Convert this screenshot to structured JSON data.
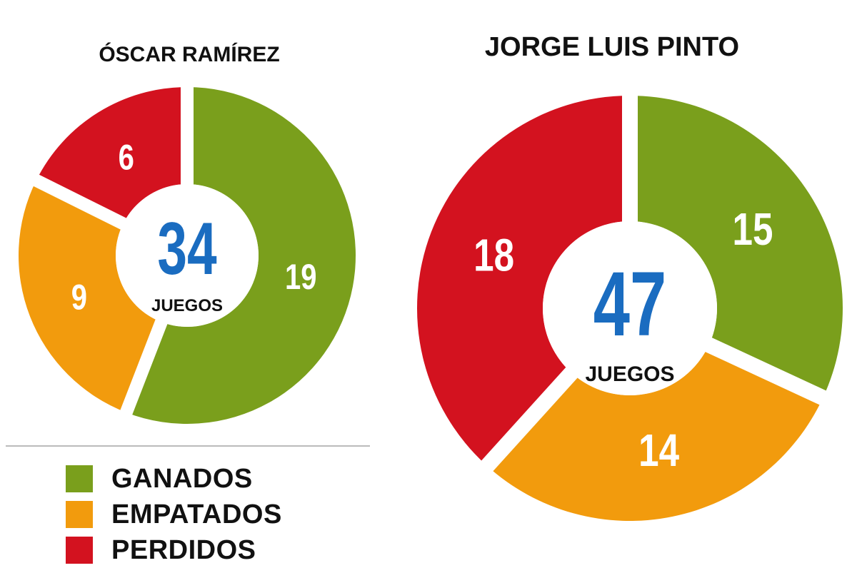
{
  "chart_data": [
    {
      "type": "pie",
      "title": "ÓSCAR RAMÍREZ",
      "categories": [
        "GANADOS",
        "EMPATADOS",
        "PERDIDOS"
      ],
      "values": [
        19,
        9,
        6
      ],
      "total": "34",
      "total_label": "JUEGOS"
    },
    {
      "type": "pie",
      "title": "JORGE LUIS PINTO",
      "categories": [
        "GANADOS",
        "EMPATADOS",
        "PERDIDOS"
      ],
      "values": [
        15,
        14,
        18
      ],
      "total": "47",
      "total_label": "JUEGOS"
    }
  ],
  "legend": [
    {
      "label": "GANADOS",
      "color": "#7a9f1c"
    },
    {
      "label": "EMPATADOS",
      "color": "#f29b0d"
    },
    {
      "label": "PERDIDOS",
      "color": "#d3121f"
    }
  ],
  "colors": {
    "total": "#1a6cc0"
  }
}
